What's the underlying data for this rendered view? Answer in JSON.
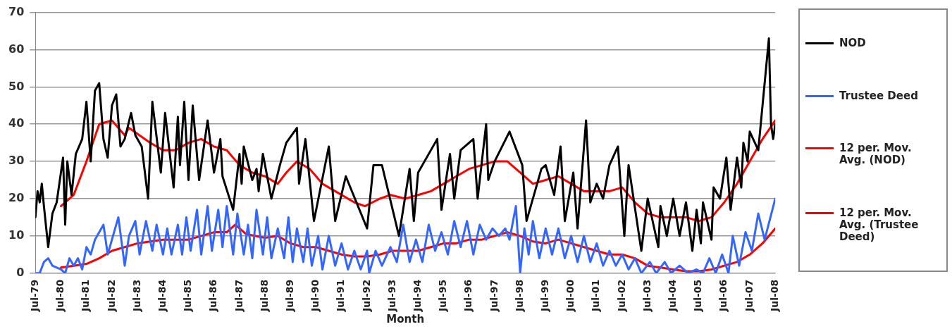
{
  "chart_data": {
    "type": "line",
    "xlabel": "Month",
    "xlim": [
      "1979-07",
      "2008-07"
    ],
    "xticks": [
      {
        "value": "1979-07",
        "label": "Jul-79"
      },
      {
        "value": "1980-07",
        "label": "Jul-80"
      },
      {
        "value": "1981-07",
        "label": "Jul-81"
      },
      {
        "value": "1982-07",
        "label": "Jul-82"
      },
      {
        "value": "1983-07",
        "label": "Jul-83"
      },
      {
        "value": "1984-07",
        "label": "Jul-84"
      },
      {
        "value": "1985-07",
        "label": "Jul-85"
      },
      {
        "value": "1986-07",
        "label": "Jul-86"
      },
      {
        "value": "1987-07",
        "label": "Jul-87"
      },
      {
        "value": "1988-07",
        "label": "Jul-88"
      },
      {
        "value": "1989-07",
        "label": "Jul-89"
      },
      {
        "value": "1990-07",
        "label": "Jul-90"
      },
      {
        "value": "1991-07",
        "label": "Jul-91"
      },
      {
        "value": "1992-07",
        "label": "Jul-92"
      },
      {
        "value": "1993-07",
        "label": "Jul-93"
      },
      {
        "value": "1994-07",
        "label": "Jul-94"
      },
      {
        "value": "1995-07",
        "label": "Jul-95"
      },
      {
        "value": "1996-07",
        "label": "Jul-96"
      },
      {
        "value": "1997-07",
        "label": "Jul-97"
      },
      {
        "value": "1998-07",
        "label": "Jul-98"
      },
      {
        "value": "1999-07",
        "label": "Jul-99"
      },
      {
        "value": "2000-07",
        "label": "Jul-00"
      },
      {
        "value": "2001-07",
        "label": "Jul-01"
      },
      {
        "value": "2002-07",
        "label": "Jul-02"
      },
      {
        "value": "2003-07",
        "label": "Jul-03"
      },
      {
        "value": "2004-07",
        "label": "Jul-04"
      },
      {
        "value": "2005-07",
        "label": "Jul-05"
      },
      {
        "value": "2006-07",
        "label": "Jul-06"
      },
      {
        "value": "2007-07",
        "label": "Jul-07"
      },
      {
        "value": "2008-07",
        "label": "Jul-08"
      }
    ],
    "ylim": [
      0,
      70
    ],
    "yticks": [
      0,
      10,
      20,
      30,
      40,
      50,
      60,
      70
    ],
    "grid": "y",
    "legend": "right",
    "marker": "none",
    "line_style": "solid",
    "series": [
      {
        "name": "NOD",
        "color": "#000000",
        "x": [
          "1979-07",
          "1979-08",
          "1979-09",
          "1979-10",
          "1979-11",
          "1980-01",
          "1980-03",
          "1980-05",
          "1980-08",
          "1980-09",
          "1980-10",
          "1980-12",
          "1981-02",
          "1981-05",
          "1981-07",
          "1981-09",
          "1981-11",
          "1982-01",
          "1982-03",
          "1982-05",
          "1982-07",
          "1982-09",
          "1982-11",
          "1983-01",
          "1983-04",
          "1983-06",
          "1983-09",
          "1983-12",
          "1984-02",
          "1984-06",
          "1984-08",
          "1984-12",
          "1985-02",
          "1985-03",
          "1985-05",
          "1985-07",
          "1985-09",
          "1985-12",
          "1986-04",
          "1986-07",
          "1986-10",
          "1986-11",
          "1987-04",
          "1987-07",
          "1987-08",
          "1987-09",
          "1988-01",
          "1988-03",
          "1988-04",
          "1988-06",
          "1988-10",
          "1989-02",
          "1989-05",
          "1989-10",
          "1989-11",
          "1990-02",
          "1990-06",
          "1991-01",
          "1991-04",
          "1991-09",
          "1992-07",
          "1992-10",
          "1993-02",
          "1993-10",
          "1994-03",
          "1994-05",
          "1994-07",
          "1995-04",
          "1995-06",
          "1995-10",
          "1995-12",
          "1996-03",
          "1996-09",
          "1996-11",
          "1997-03",
          "1997-04",
          "1997-07",
          "1998-02",
          "1998-08",
          "1998-10",
          "1999-05",
          "1999-07",
          "1999-11",
          "2000-02",
          "2000-04",
          "2000-08",
          "2000-10",
          "2001-02",
          "2001-04",
          "2001-07",
          "2001-10",
          "2002-01",
          "2002-05",
          "2002-08",
          "2002-10",
          "2003-04",
          "2003-07",
          "2003-12",
          "2004-01",
          "2004-04",
          "2004-07",
          "2004-10",
          "2005-01",
          "2005-04",
          "2005-06",
          "2005-08",
          "2005-09",
          "2006-01",
          "2006-02",
          "2006-05",
          "2006-08",
          "2006-10",
          "2007-01",
          "2007-03",
          "2007-04",
          "2007-06",
          "2007-07",
          "2007-11",
          "2008-01",
          "2008-04",
          "2008-05",
          "2008-06",
          "2008-07"
        ],
        "values": [
          15,
          22,
          19,
          24,
          18,
          7,
          16,
          19,
          31,
          13,
          30,
          21,
          32,
          36,
          46,
          30,
          49,
          51,
          36,
          31,
          45,
          48,
          34,
          36,
          43,
          37,
          34,
          20,
          46,
          27,
          43,
          23,
          42,
          29,
          46,
          25,
          45,
          25,
          41,
          27,
          36,
          26,
          17,
          32,
          24,
          34,
          25,
          28,
          22,
          32,
          20,
          29,
          35,
          39,
          24,
          36,
          14,
          34,
          14,
          26,
          12,
          29,
          29,
          10,
          28,
          14,
          27,
          36,
          17,
          32,
          20,
          33,
          36,
          20,
          40,
          25,
          30,
          38,
          29,
          14,
          28,
          29,
          21,
          34,
          14,
          27,
          12,
          41,
          19,
          24,
          20,
          29,
          34,
          10,
          29,
          6,
          20,
          7,
          18,
          10,
          20,
          10,
          19,
          6,
          17,
          8,
          19,
          9,
          23,
          20,
          31,
          17,
          31,
          23,
          35,
          30,
          38,
          33,
          45,
          63,
          40,
          36,
          40
        ]
      },
      {
        "name": "Trustee Deed",
        "color": "#3366ff",
        "x": [
          "1979-07",
          "1979-09",
          "1979-11",
          "1980-01",
          "1980-03",
          "1980-07",
          "1980-09",
          "1980-11",
          "1981-01",
          "1981-03",
          "1981-05",
          "1981-07",
          "1981-09",
          "1981-11",
          "1982-03",
          "1982-05",
          "1982-07",
          "1982-10",
          "1983-01",
          "1983-03",
          "1983-06",
          "1983-08",
          "1983-11",
          "1984-02",
          "1984-04",
          "1984-07",
          "1984-09",
          "1984-11",
          "1985-02",
          "1985-04",
          "1985-06",
          "1985-08",
          "1985-11",
          "1986-01",
          "1986-04",
          "1986-06",
          "1986-09",
          "1986-11",
          "1987-01",
          "1987-04",
          "1987-06",
          "1987-09",
          "1987-11",
          "1988-01",
          "1988-03",
          "1988-06",
          "1988-08",
          "1988-10",
          "1989-01",
          "1989-04",
          "1989-06",
          "1989-08",
          "1989-10",
          "1990-01",
          "1990-03",
          "1990-05",
          "1990-08",
          "1990-10",
          "1991-01",
          "1991-04",
          "1991-07",
          "1991-10",
          "1992-01",
          "1992-04",
          "1992-07",
          "1992-08",
          "1992-11",
          "1993-02",
          "1993-06",
          "1993-09",
          "1993-12",
          "1994-03",
          "1994-06",
          "1994-09",
          "1994-12",
          "1995-03",
          "1995-06",
          "1995-09",
          "1995-12",
          "1996-03",
          "1996-06",
          "1996-09",
          "1996-12",
          "1997-03",
          "1997-06",
          "1997-09",
          "1997-12",
          "1998-02",
          "1998-05",
          "1998-07",
          "1998-09",
          "1998-11",
          "1999-01",
          "1999-04",
          "1999-07",
          "1999-10",
          "2000-01",
          "2000-04",
          "2000-07",
          "2000-10",
          "2001-01",
          "2001-04",
          "2001-07",
          "2001-10",
          "2002-01",
          "2002-04",
          "2002-07",
          "2002-10",
          "2003-01",
          "2003-04",
          "2003-08",
          "2003-11",
          "2004-03",
          "2004-06",
          "2004-10",
          "2005-02",
          "2005-06",
          "2005-09",
          "2005-12",
          "2006-03",
          "2006-06",
          "2006-09",
          "2006-11",
          "2007-02",
          "2007-05",
          "2007-08",
          "2007-11",
          "2008-02",
          "2008-07"
        ],
        "values": [
          0,
          0,
          3,
          4,
          2,
          1,
          0,
          4,
          2,
          4,
          1,
          7,
          5,
          9,
          13,
          5,
          9,
          15,
          2,
          10,
          14,
          5,
          14,
          6,
          13,
          5,
          12,
          5,
          13,
          5,
          15,
          6,
          17,
          5,
          18,
          6,
          17,
          7,
          18,
          5,
          16,
          5,
          13,
          4,
          17,
          5,
          15,
          4,
          12,
          4,
          15,
          3,
          12,
          3,
          12,
          2,
          10,
          1,
          10,
          2,
          8,
          1,
          6,
          1,
          6,
          0,
          6,
          2,
          7,
          3,
          13,
          3,
          9,
          3,
          13,
          6,
          11,
          5,
          14,
          7,
          14,
          5,
          13,
          9,
          12,
          10,
          12,
          9,
          18,
          0,
          12,
          5,
          14,
          4,
          12,
          5,
          12,
          4,
          10,
          3,
          10,
          3,
          8,
          2,
          6,
          2,
          5,
          1,
          4,
          0,
          3,
          0,
          3,
          0,
          2,
          0,
          1,
          0,
          4,
          0,
          5,
          0,
          10,
          2,
          11,
          6,
          16,
          9,
          20
        ]
      },
      {
        "name": "12 per. Mov. Avg. (NOD)",
        "color": "#ff0000",
        "x": [
          "1980-07",
          "1981-01",
          "1981-07",
          "1982-01",
          "1982-07",
          "1983-01",
          "1983-03",
          "1984-01",
          "1984-07",
          "1985-01",
          "1985-07",
          "1986-01",
          "1986-07",
          "1987-01",
          "1987-07",
          "1988-01",
          "1988-07",
          "1989-01",
          "1989-05",
          "1989-10",
          "1990-04",
          "1990-10",
          "1991-04",
          "1992-01",
          "1992-06",
          "1993-01",
          "1993-06",
          "1994-01",
          "1994-07",
          "1995-01",
          "1995-07",
          "1996-01",
          "1996-07",
          "1997-01",
          "1997-07",
          "1998-01",
          "1998-07",
          "1999-01",
          "1999-07",
          "2000-01",
          "2000-07",
          "2001-01",
          "2001-07",
          "2002-01",
          "2002-07",
          "2003-01",
          "2003-07",
          "2004-01",
          "2004-07",
          "2005-01",
          "2005-07",
          "2006-01",
          "2006-07",
          "2007-01",
          "2007-07",
          "2008-01",
          "2008-07"
        ],
        "values": [
          18,
          21,
          30,
          40,
          41,
          37,
          39,
          35,
          33,
          33,
          35,
          36,
          34,
          33,
          29,
          27,
          26,
          24,
          27,
          30,
          28,
          24,
          22,
          19,
          18,
          20,
          21,
          20,
          21,
          22,
          24,
          26,
          28,
          29,
          30,
          30,
          27,
          24,
          25,
          26,
          24,
          22,
          22,
          22,
          23,
          19,
          16,
          15,
          15,
          15,
          14,
          15,
          19,
          24,
          30,
          36,
          41
        ]
      },
      {
        "name": "12 per. Mov. Avg. (Trustee Deed)",
        "color": "#ff0000",
        "x": [
          "1980-07",
          "1981-01",
          "1981-07",
          "1982-01",
          "1982-07",
          "1983-01",
          "1983-07",
          "1984-01",
          "1984-07",
          "1985-01",
          "1985-07",
          "1986-01",
          "1986-07",
          "1987-01",
          "1987-05",
          "1987-10",
          "1988-07",
          "1989-01",
          "1989-07",
          "1990-01",
          "1990-07",
          "1991-01",
          "1991-07",
          "1992-01",
          "1992-07",
          "1993-01",
          "1993-07",
          "1994-01",
          "1994-07",
          "1995-01",
          "1995-07",
          "1996-01",
          "1996-07",
          "1997-01",
          "1997-07",
          "1998-01",
          "1998-07",
          "1999-01",
          "1999-07",
          "2000-01",
          "2000-07",
          "2001-01",
          "2001-07",
          "2002-01",
          "2002-07",
          "2003-01",
          "2003-07",
          "2004-01",
          "2004-07",
          "2005-01",
          "2005-07",
          "2006-01",
          "2006-07",
          "2007-01",
          "2007-07",
          "2008-01",
          "2008-07"
        ],
        "values": [
          1.5,
          2,
          2.5,
          4,
          6,
          7,
          8,
          8.5,
          9,
          9,
          9,
          10,
          11,
          11,
          13,
          10.5,
          9.5,
          10,
          8,
          7,
          7,
          6,
          5,
          4.5,
          4.5,
          5,
          6,
          6,
          6,
          7,
          8,
          8,
          9,
          9,
          10,
          11,
          10,
          8.5,
          8,
          9,
          8,
          7,
          6,
          5,
          5,
          4,
          2,
          1.5,
          1,
          0.5,
          0.5,
          1,
          2,
          3,
          5,
          8,
          12
        ]
      }
    ]
  }
}
